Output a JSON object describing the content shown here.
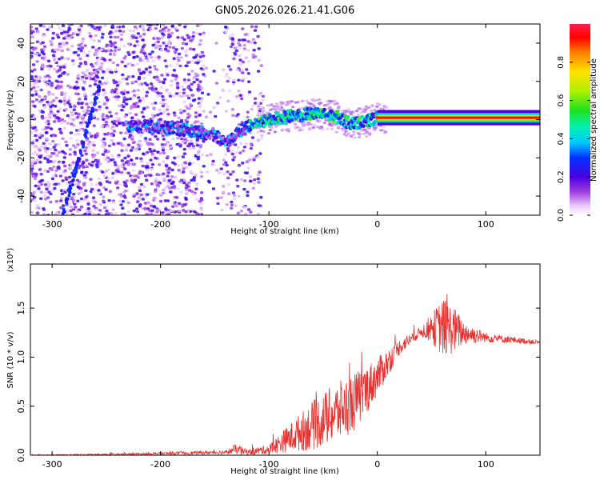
{
  "title": "GN05.2026.026.21.41.G06",
  "colors": {
    "snr_line": "#e8302e",
    "background": "#ffffff",
    "axis": "#000000"
  },
  "chart_data": [
    {
      "type": "heatmap",
      "xlabel": "Height of straight line (km)",
      "ylabel": "Frequency (Hz)",
      "xlim": [
        -320,
        150
      ],
      "ylim": [
        -50,
        50
      ],
      "xticks": [
        -300,
        -200,
        -100,
        0,
        100
      ],
      "yticks": [
        -40,
        -20,
        0,
        20,
        40
      ],
      "colorbar": {
        "label": "Normalized spectral amplitude",
        "range": [
          0,
          1
        ],
        "ticks": [
          "0.0",
          "0.2",
          "0.4",
          "0.6",
          "0.8"
        ]
      },
      "ridge": {
        "x": [
          -230,
          -200,
          -170,
          -150,
          -140,
          -120,
          -100,
          -80,
          -60,
          -40,
          -25,
          -10,
          0,
          20,
          60,
          100,
          150
        ],
        "y": [
          -3,
          -4,
          -6,
          -8,
          -12,
          -4,
          0,
          2,
          3,
          2,
          -2,
          -1,
          1,
          1,
          1,
          1,
          1
        ]
      },
      "streak": {
        "x": [
          -290,
          -255
        ],
        "y": [
          -50,
          20
        ]
      }
    },
    {
      "type": "line",
      "xlabel": "Height of straight line (km)",
      "ylabel": "SNR (10 * v/v)",
      "exponent": "(x10⁴)",
      "xlim": [
        -320,
        150
      ],
      "ylim": [
        0,
        1.95
      ],
      "xticks": [
        -300,
        -200,
        -100,
        0,
        100
      ],
      "yticks": [
        "0.0",
        "0.5",
        "1.0",
        "1.5"
      ],
      "envelope": {
        "x": [
          -320,
          -250,
          -140,
          -130,
          -120,
          -100,
          -90,
          -80,
          -60,
          -40,
          -20,
          0,
          20,
          40,
          50,
          60,
          70,
          80,
          100,
          150
        ],
        "mean": [
          0.0,
          0.005,
          0.03,
          0.06,
          0.03,
          0.06,
          0.12,
          0.18,
          0.3,
          0.42,
          0.55,
          0.8,
          1.1,
          1.26,
          1.3,
          1.3,
          1.28,
          1.25,
          1.2,
          1.15
        ],
        "spread": [
          0.005,
          0.01,
          0.02,
          0.05,
          0.03,
          0.05,
          0.1,
          0.15,
          0.25,
          0.3,
          0.3,
          0.2,
          0.08,
          0.05,
          0.15,
          0.3,
          0.25,
          0.12,
          0.05,
          0.02
        ]
      }
    }
  ]
}
